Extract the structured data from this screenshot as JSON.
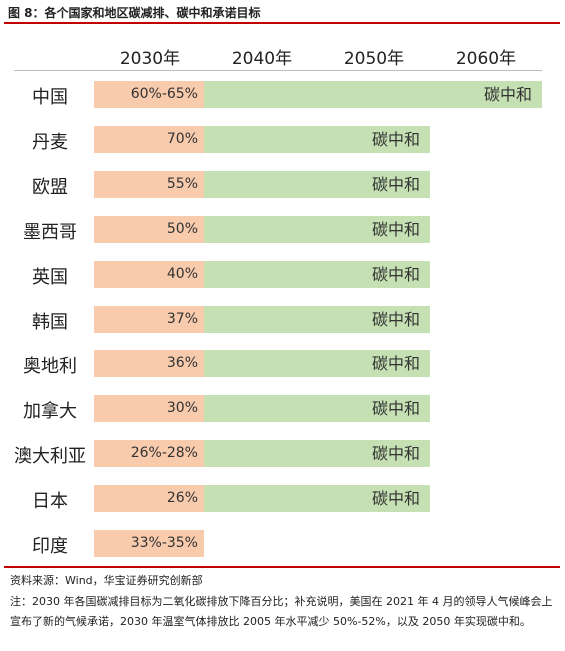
{
  "title": "图 8：各个国家和地区碳减排、碳中和承诺目标",
  "years": [
    "2030年",
    "2040年",
    "2050年",
    "2060年"
  ],
  "chart_data": {
    "type": "bar",
    "categories": [
      "中国",
      "丹麦",
      "欧盟",
      "墨西哥",
      "英国",
      "韩国",
      "奥地利",
      "加拿大",
      "澳大利亚",
      "日本",
      "印度"
    ],
    "reduction_2030_labels": [
      "60%-65%",
      "70%",
      "55%",
      "50%",
      "40%",
      "37%",
      "36%",
      "30%",
      "26%-28%",
      "26%",
      "33%-35%"
    ],
    "carbon_neutral_year": [
      2060,
      2050,
      2050,
      2050,
      2050,
      2050,
      2050,
      2050,
      2050,
      2050,
      null
    ],
    "carbon_neutral_label": "碳中和",
    "colors": {
      "reduction": "#f8cbad",
      "carbon_neutral": "#c5e0b3",
      "rule": "#c00000"
    }
  },
  "source": "资料来源：Wind，华宝证券研究创新部",
  "note": "注：2030 年各国碳减排目标为二氧化碳排放下降百分比；补充说明，美国在 2021 年 4 月的领导人气候峰会上宣布了新的气候承诺，2030 年温室气体排放比 2005 年水平减少 50%-52%，以及 2050 年实现碳中和。"
}
